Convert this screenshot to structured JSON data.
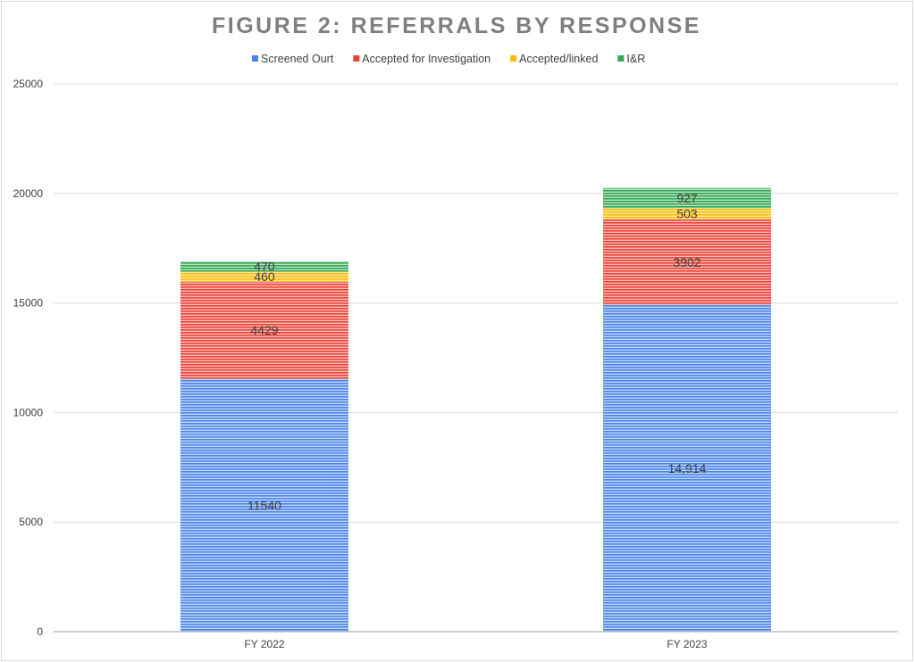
{
  "chart_data": {
    "type": "bar",
    "stacked": true,
    "title": "FIGURE 2: REFERRALS BY RESPONSE",
    "categories": [
      "FY 2022",
      "FY 2023"
    ],
    "series": [
      {
        "name": "Screened Ourt",
        "values": [
          11540,
          14914
        ],
        "labels": [
          "11540",
          "14,914"
        ],
        "color": "#4a86e8"
      },
      {
        "name": "Accepted for Investigation",
        "values": [
          4429,
          3902
        ],
        "labels": [
          "4429",
          "3902"
        ],
        "color": "#ea4335"
      },
      {
        "name": "Accepted/linked",
        "values": [
          460,
          503
        ],
        "labels": [
          "460",
          "503"
        ],
        "color": "#fbbc04"
      },
      {
        "name": "I&R",
        "values": [
          470,
          927
        ],
        "labels": [
          "470",
          "927"
        ],
        "color": "#34a853"
      }
    ],
    "ylim": [
      0,
      25000
    ],
    "yticks": [
      "0",
      "5000",
      "10000",
      "15000",
      "20000",
      "25000"
    ],
    "grid": true,
    "legend": "top",
    "xlabel": "",
    "ylabel": ""
  }
}
